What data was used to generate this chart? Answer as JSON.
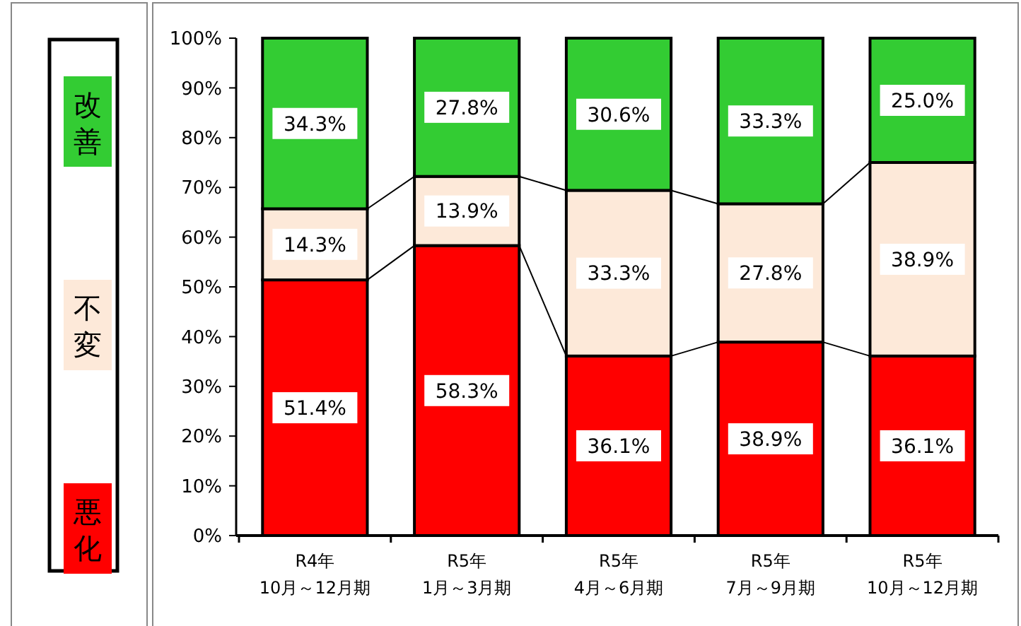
{
  "chart_data": {
    "type": "bar",
    "stacked": true,
    "categories": [
      "R4年\n10月～12月期",
      "R5年\n1月～3月期",
      "R5年\n4月～6月期",
      "R5年\n7月～9月期",
      "R5年\n10月～12月期"
    ],
    "series": [
      {
        "name": "悪化",
        "color": "#ff0000",
        "values": [
          51.4,
          58.3,
          36.1,
          38.9,
          36.1
        ],
        "value_labels": [
          "51.4%",
          "58.3%",
          "36.1%",
          "38.9%",
          "36.1%"
        ]
      },
      {
        "name": "不変",
        "color": "#fde9d9",
        "values": [
          14.3,
          13.9,
          33.3,
          27.8,
          38.9
        ],
        "value_labels": [
          "14.3%",
          "13.9%",
          "33.3%",
          "27.8%",
          "38.9%"
        ]
      },
      {
        "name": "改善",
        "color": "#33cc33",
        "values": [
          34.3,
          27.8,
          30.6,
          33.3,
          25.0
        ],
        "value_labels": [
          "34.3%",
          "27.8%",
          "30.6%",
          "33.3%",
          "25.0%"
        ]
      }
    ],
    "ylim": [
      0,
      100
    ],
    "yticks": [
      {
        "value": 0,
        "label": "0%"
      },
      {
        "value": 10,
        "label": "10%"
      },
      {
        "value": 20,
        "label": "20%"
      },
      {
        "value": 30,
        "label": "30%"
      },
      {
        "value": 40,
        "label": "40%"
      },
      {
        "value": 50,
        "label": "50%"
      },
      {
        "value": 60,
        "label": "60%"
      },
      {
        "value": 70,
        "label": "70%"
      },
      {
        "value": 80,
        "label": "80%"
      },
      {
        "value": 90,
        "label": "90%"
      },
      {
        "value": 100,
        "label": "100%"
      }
    ],
    "grid": false,
    "legend": "left"
  }
}
